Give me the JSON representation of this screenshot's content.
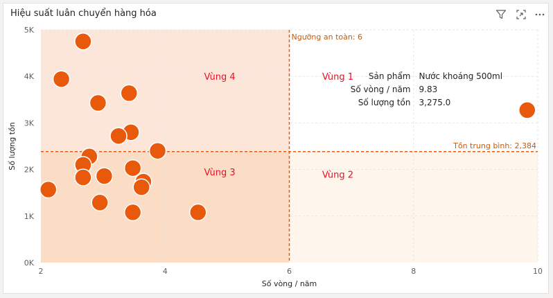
{
  "visual": {
    "title": "Hiệu suất luân chuyển hàng hóa",
    "icons": [
      "filter-icon",
      "focus-mode-icon",
      "more-options-icon"
    ]
  },
  "colors": {
    "point": "#e8590c",
    "point_stroke": "#ffffff",
    "reference_line": "#e8590c",
    "zone_label": "#e81123",
    "zone1": "#ffffff",
    "zone2": "#fef5ec",
    "zone3": "#fbdcc5",
    "zone4": "#fce6da",
    "grid": "#e6e6e6",
    "axis_text": "#605e5c",
    "ref_label": "#c55a11"
  },
  "chart_data": {
    "type": "scatter",
    "xlabel": "Số vòng / năm",
    "ylabel": "Số lượng tồn",
    "xlim": [
      2,
      10
    ],
    "ylim": [
      0,
      5000
    ],
    "x_ticks": [
      2,
      4,
      6,
      8,
      10
    ],
    "y_ticks": [
      0,
      1000,
      2000,
      3000,
      4000,
      5000
    ],
    "y_tick_labels": [
      "0K",
      "1K",
      "2K",
      "3K",
      "4K",
      "5K"
    ],
    "grid": true,
    "points": [
      {
        "x": 2.68,
        "y": 4750
      },
      {
        "x": 2.33,
        "y": 3940
      },
      {
        "x": 3.42,
        "y": 3640
      },
      {
        "x": 2.92,
        "y": 3430
      },
      {
        "x": 3.45,
        "y": 2800
      },
      {
        "x": 3.25,
        "y": 2720
      },
      {
        "x": 3.88,
        "y": 2400
      },
      {
        "x": 2.78,
        "y": 2280
      },
      {
        "x": 2.68,
        "y": 2100
      },
      {
        "x": 3.48,
        "y": 2030
      },
      {
        "x": 3.02,
        "y": 1860
      },
      {
        "x": 2.68,
        "y": 1830
      },
      {
        "x": 3.65,
        "y": 1740
      },
      {
        "x": 3.62,
        "y": 1620
      },
      {
        "x": 2.12,
        "y": 1570
      },
      {
        "x": 2.95,
        "y": 1290
      },
      {
        "x": 3.48,
        "y": 1080
      },
      {
        "x": 4.53,
        "y": 1080
      },
      {
        "x": 9.83,
        "y": 3275
      }
    ],
    "reference_lines": {
      "x": {
        "value": 6,
        "label": "Ngưỡng an toàn: 6"
      },
      "y": {
        "value": 2384,
        "label": "Tồn trung bình: 2,384"
      }
    },
    "zones": [
      {
        "name": "Vùng 1",
        "quadrant": "top-right"
      },
      {
        "name": "Vùng 2",
        "quadrant": "bottom-right"
      },
      {
        "name": "Vùng 3",
        "quadrant": "bottom-left"
      },
      {
        "name": "Vùng 4",
        "quadrant": "top-left"
      }
    ]
  },
  "tooltip": {
    "rows": [
      {
        "label": "Sản phẩm",
        "value": "Nước khoáng 500ml"
      },
      {
        "label": "Số vòng / năm",
        "value": "9.83"
      },
      {
        "label": "Số lượng tồn",
        "value": "3,275.0"
      }
    ]
  }
}
